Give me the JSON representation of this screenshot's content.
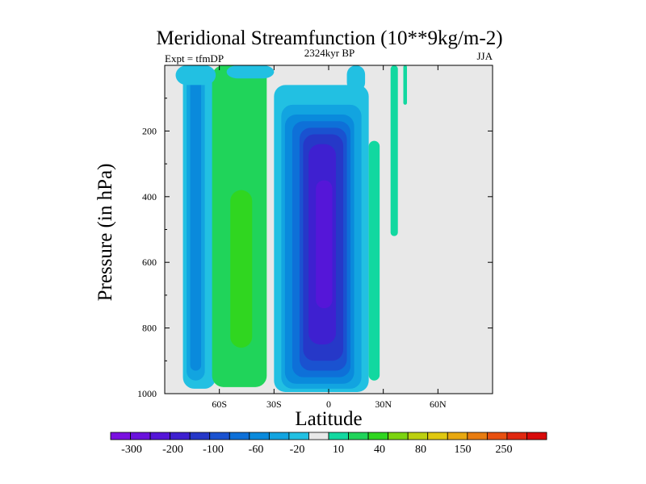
{
  "chart_data": {
    "type": "heatmap",
    "title": "Meridional Streamfunction (10**9kg/m-2)",
    "subtitle_left": "Expt = tfmDP",
    "subtitle_center": "2324kyr BP",
    "subtitle_right": "JJA",
    "xlabel": "Latitude",
    "ylabel": "Pressure (in hPa)",
    "xlim": [
      -90,
      90
    ],
    "ylim": [
      1000,
      0
    ],
    "x_ticks": [
      {
        "value": -60,
        "label": "60S"
      },
      {
        "value": -30,
        "label": "30S"
      },
      {
        "value": 0,
        "label": "0"
      },
      {
        "value": 30,
        "label": "30N"
      },
      {
        "value": 60,
        "label": "60N"
      }
    ],
    "y_ticks": [
      {
        "value": 200,
        "label": "200"
      },
      {
        "value": 400,
        "label": "400"
      },
      {
        "value": 600,
        "label": "600"
      },
      {
        "value": 800,
        "label": "800"
      },
      {
        "value": 1000,
        "label": "1000"
      }
    ],
    "background_color": "#e8e8e8",
    "colorbar": {
      "colors": [
        "#7a10e0",
        "#6a12dc",
        "#5516d8",
        "#3e20d0",
        "#2638c8",
        "#1a52d0",
        "#0e70d8",
        "#0a8adc",
        "#12a4e0",
        "#22c0e2",
        "#e8e8e8",
        "#12d8a0",
        "#20d45a",
        "#30d620",
        "#7cd410",
        "#bcd010",
        "#e0c810",
        "#e8a810",
        "#e87c10",
        "#e85010",
        "#e02810",
        "#d80a0a"
      ],
      "labels": [
        "-300",
        "-200",
        "-100",
        "-60",
        "-20",
        "10",
        "40",
        "80",
        "150",
        "250"
      ]
    },
    "contour_fields": [
      {
        "name": "outer-southern-cell",
        "level_index": 9,
        "lat_range": [
          -80,
          -62
        ],
        "p_range": [
          0,
          985
        ]
      },
      {
        "name": "southern-cell-center",
        "level_index": 8,
        "lat_range": [
          -78,
          -68
        ],
        "p_range": [
          0,
          960
        ]
      },
      {
        "name": "southern-cell-core",
        "level_index": 7,
        "lat_range": [
          -76,
          -70
        ],
        "p_range": [
          0,
          930
        ]
      },
      {
        "name": "mid-positive-cell",
        "level_index": 12,
        "lat_range": [
          -64,
          -34
        ],
        "p_range": [
          0,
          980
        ]
      },
      {
        "name": "mid-positive-core",
        "level_index": 13,
        "lat_range": [
          -54,
          -42
        ],
        "p_range": [
          380,
          860
        ]
      },
      {
        "name": "tropical-cell-outer",
        "level_index": 9,
        "lat_range": [
          -30,
          22
        ],
        "p_range": [
          60,
          995
        ]
      },
      {
        "name": "tropical-cell-l8",
        "level_index": 8,
        "lat_range": [
          -26,
          18
        ],
        "p_range": [
          120,
          985
        ]
      },
      {
        "name": "tropical-cell-l7",
        "level_index": 7,
        "lat_range": [
          -24,
          14
        ],
        "p_range": [
          150,
          970
        ]
      },
      {
        "name": "tropical-cell-l6",
        "level_index": 6,
        "lat_range": [
          -20,
          12
        ],
        "p_range": [
          170,
          950
        ]
      },
      {
        "name": "tropical-cell-l5",
        "level_index": 5,
        "lat_range": [
          -16,
          10
        ],
        "p_range": [
          190,
          930
        ]
      },
      {
        "name": "tropical-cell-l4",
        "level_index": 4,
        "lat_range": [
          -14,
          8
        ],
        "p_range": [
          210,
          900
        ]
      },
      {
        "name": "tropical-cell-l3",
        "level_index": 3,
        "lat_range": [
          -11,
          4
        ],
        "p_range": [
          240,
          850
        ]
      },
      {
        "name": "tropical-cell-l2",
        "level_index": 2,
        "lat_range": [
          -7,
          2
        ],
        "p_range": [
          350,
          740
        ]
      },
      {
        "name": "northern-positive-strip",
        "level_index": 11,
        "lat_range": [
          22,
          28
        ],
        "p_range": [
          230,
          960
        ]
      },
      {
        "name": "high-lat-strip-1",
        "level_index": 11,
        "lat_range": [
          34,
          38
        ],
        "p_range": [
          0,
          520
        ]
      },
      {
        "name": "high-lat-strip-2",
        "level_index": 11,
        "lat_range": [
          41,
          43
        ],
        "p_range": [
          0,
          120
        ]
      },
      {
        "name": "upper-wing-left",
        "level_index": 9,
        "lat_range": [
          -84,
          -62
        ],
        "p_range": [
          0,
          60
        ]
      },
      {
        "name": "upper-wing-mid",
        "level_index": 9,
        "lat_range": [
          -56,
          -30
        ],
        "p_range": [
          0,
          40
        ]
      },
      {
        "name": "upper-wing-right",
        "level_index": 9,
        "lat_range": [
          10,
          20
        ],
        "p_range": [
          0,
          80
        ]
      }
    ]
  }
}
